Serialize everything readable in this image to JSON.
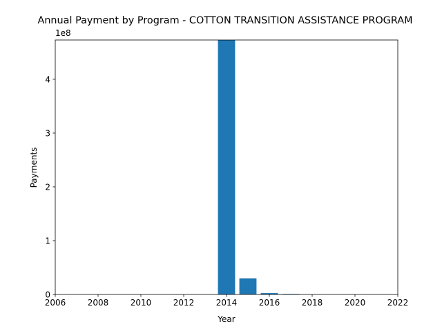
{
  "chart_data": {
    "type": "bar",
    "title": "Annual Payment by Program - COTTON TRANSITION ASSISTANCE PROGRAM",
    "xlabel": "Year",
    "ylabel": "Payments",
    "offset_label": "1e8",
    "xlim": [
      2006,
      2022
    ],
    "ylim": [
      0,
      4.73
    ],
    "scale": 100000000,
    "x_ticks": [
      2006,
      2008,
      2010,
      2012,
      2014,
      2016,
      2018,
      2020,
      2022
    ],
    "y_ticks": [
      0,
      1,
      2,
      3,
      4
    ],
    "grid": false,
    "bar_color": "#1f77b4",
    "series": [
      {
        "x": [
          2014,
          2015,
          2016,
          2017
        ],
        "values": [
          473000000,
          30000000,
          2500000,
          1000000
        ]
      }
    ]
  }
}
